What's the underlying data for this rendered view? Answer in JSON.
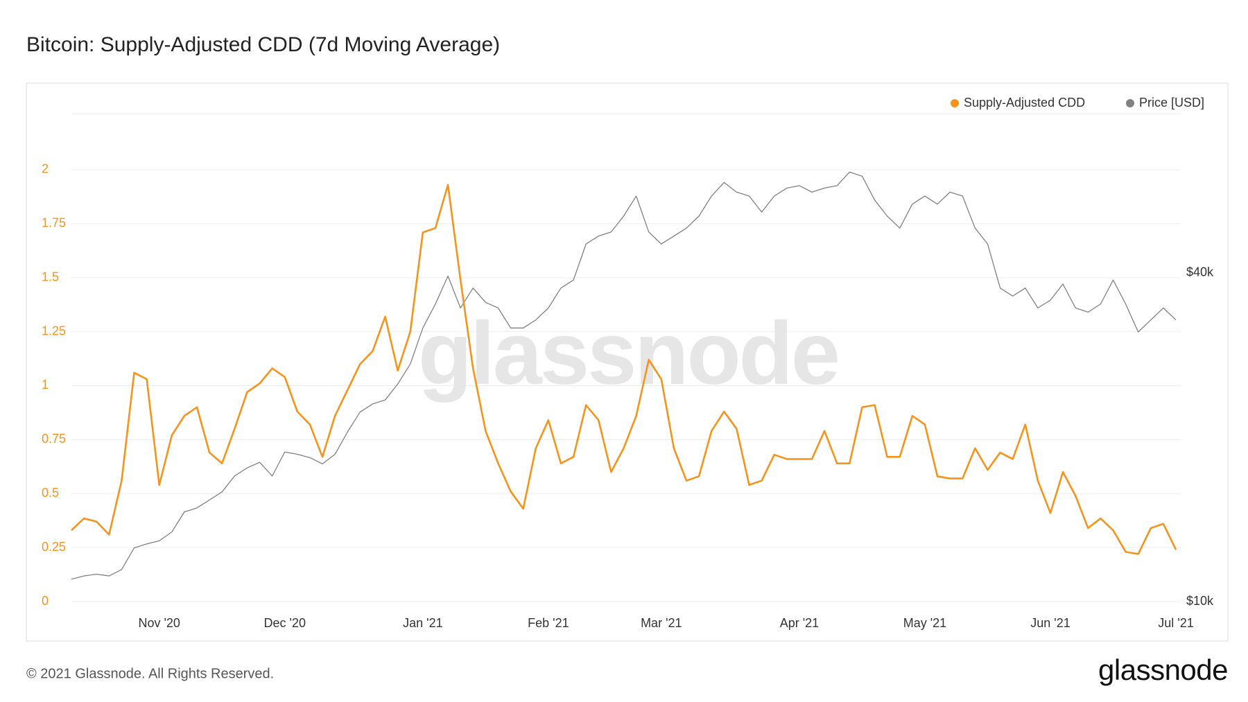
{
  "chart_data": {
    "type": "line",
    "title": "Bitcoin: Supply-Adjusted CDD (7d Moving Average)",
    "watermark": "glassnode",
    "legend": "top-right",
    "grid": true,
    "categories": [
      null,
      null,
      null,
      null,
      null,
      null,
      null,
      "Nov '20",
      null,
      null,
      null,
      null,
      null,
      null,
      null,
      null,
      null,
      "Dec '20",
      null,
      null,
      null,
      null,
      null,
      null,
      null,
      null,
      null,
      null,
      "Jan '21",
      null,
      null,
      null,
      null,
      null,
      null,
      null,
      null,
      null,
      "Feb '21",
      null,
      null,
      null,
      null,
      null,
      null,
      null,
      null,
      "Mar '21",
      null,
      null,
      null,
      null,
      null,
      null,
      null,
      null,
      null,
      null,
      "Apr '21",
      null,
      null,
      null,
      null,
      null,
      null,
      null,
      null,
      null,
      "May '21",
      null,
      null,
      null,
      null,
      null,
      null,
      null,
      null,
      null,
      "Jun '21",
      null,
      null,
      null,
      null,
      null,
      null,
      null,
      null,
      null,
      "Jul '21"
    ],
    "ylim": [
      0,
      2.26
    ],
    "yticks": [
      0,
      0.25,
      0.5,
      0.75,
      1,
      1.25,
      1.5,
      1.75,
      2
    ],
    "y2lim": [
      10000,
      78300
    ],
    "y2scale": "log",
    "y2ticks": [
      {
        "value": 10000,
        "label": "$10k"
      },
      {
        "value": 40000,
        "label": "$40k"
      }
    ],
    "series": [
      {
        "name": "Supply-Adjusted CDD",
        "color": "#f7931a",
        "values": [
          0.33,
          0.385,
          0.37,
          0.31,
          0.56,
          1.06,
          1.03,
          0.54,
          0.77,
          0.86,
          0.9,
          0.69,
          0.64,
          0.8,
          0.97,
          1.01,
          1.08,
          1.04,
          0.88,
          0.82,
          0.67,
          0.86,
          0.98,
          1.1,
          1.16,
          1.32,
          1.07,
          1.25,
          1.71,
          1.73,
          1.93,
          1.49,
          1.08,
          0.79,
          0.64,
          0.51,
          0.43,
          0.71,
          0.84,
          0.64,
          0.67,
          0.91,
          0.84,
          0.6,
          0.71,
          0.86,
          1.12,
          1.03,
          0.71,
          0.56,
          0.58,
          0.79,
          0.88,
          0.8,
          0.54,
          0.56,
          0.68,
          0.66,
          0.66,
          0.66,
          0.79,
          0.64,
          0.64,
          0.9,
          0.91,
          0.67,
          0.67,
          0.86,
          0.82,
          0.58,
          0.57,
          0.57,
          0.71,
          0.61,
          0.69,
          0.66,
          0.82,
          0.56,
          0.41,
          0.6,
          0.49,
          0.34,
          0.385,
          0.33,
          0.23,
          0.22,
          0.34,
          0.36,
          0.24
        ]
      },
      {
        "name": "Price [USD]",
        "color": "#808080",
        "axis": "y2",
        "values": [
          10990,
          11140,
          11220,
          11140,
          11440,
          12540,
          12750,
          12920,
          13410,
          14590,
          14840,
          15350,
          15880,
          16980,
          17570,
          17990,
          16980,
          18790,
          18610,
          18350,
          17870,
          18610,
          20450,
          22240,
          23010,
          23400,
          25030,
          27230,
          31700,
          35070,
          39460,
          34500,
          37520,
          35310,
          34500,
          31700,
          31700,
          32800,
          34500,
          37520,
          38810,
          45180,
          46720,
          47530,
          50820,
          55310,
          47530,
          45180,
          46720,
          48310,
          50820,
          55310,
          58580,
          56230,
          55310,
          51700,
          55310,
          57200,
          57790,
          56230,
          57200,
          57790,
          61200,
          60150,
          54380,
          50820,
          48310,
          53460,
          55310,
          53460,
          56230,
          55310,
          48310,
          45180,
          37520,
          36280,
          37520,
          34500,
          35650,
          38160,
          34500,
          33900,
          35070,
          38810,
          35070,
          31170,
          32800,
          34500,
          32800
        ]
      }
    ]
  },
  "footer": {
    "copyright": "© 2021 Glassnode. All Rights Reserved.",
    "logo": "glassnode"
  }
}
